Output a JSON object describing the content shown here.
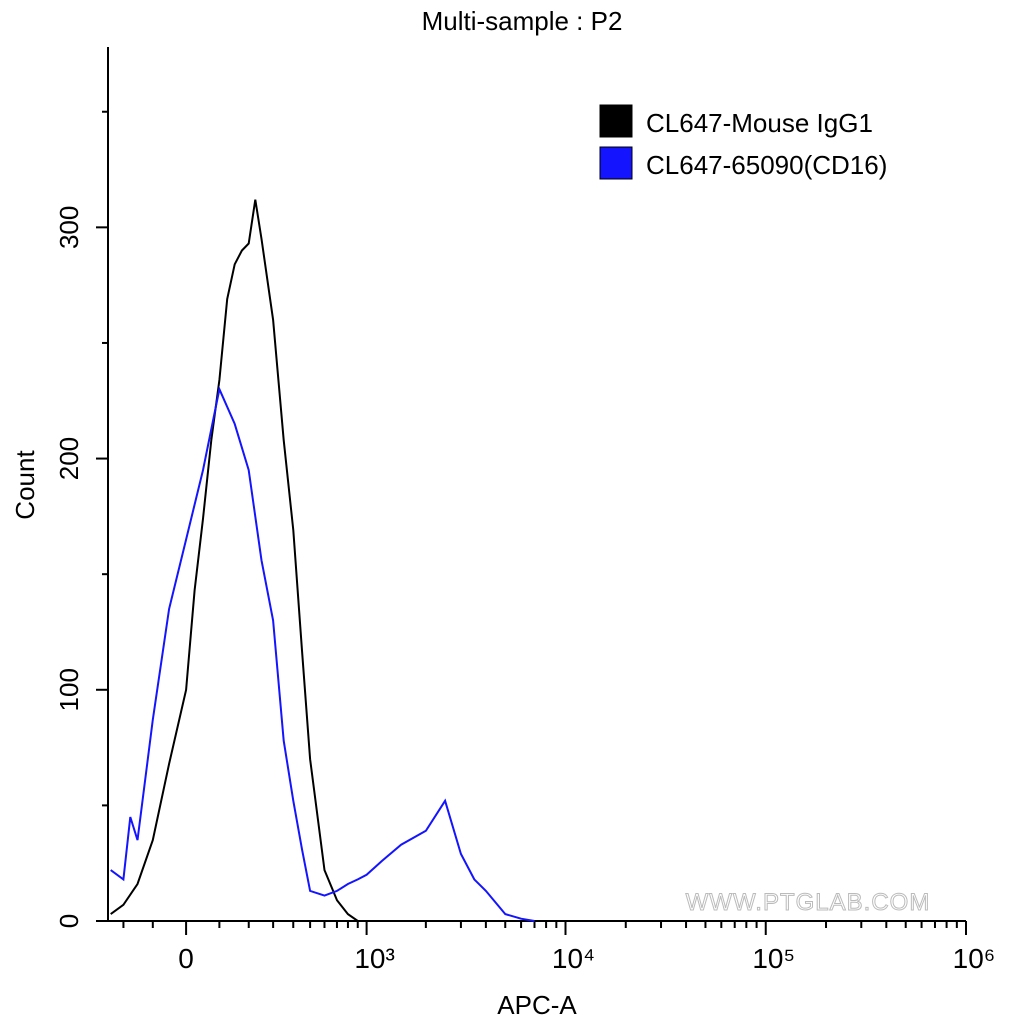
{
  "chart_data": {
    "type": "line",
    "title": "Multi-sample : P2",
    "x_label": "APC-A",
    "y_label": "Count",
    "watermark": "WWW.PTGLAB.COM",
    "xscale": "biexponential",
    "legend": "upper right",
    "xlim": [
      -261,
      1000000
    ],
    "ylim": [
      0,
      378
    ],
    "xticks": [
      0,
      {
        "value": 1000,
        "label": "10³"
      },
      {
        "value": 10000,
        "label": "10⁴"
      },
      {
        "value": 100000,
        "label": "10⁵"
      },
      {
        "value": 1000000,
        "label": "10⁶"
      }
    ],
    "xminorticks": [
      -200,
      -100,
      100,
      200,
      300,
      400,
      500,
      600,
      700,
      800,
      900,
      2000,
      3000,
      4000,
      5000,
      6000,
      7000,
      8000,
      9000,
      20000,
      30000,
      40000,
      50000,
      60000,
      70000,
      80000,
      90000,
      200000,
      300000,
      400000,
      500000,
      600000,
      700000,
      800000,
      900000
    ],
    "yticks": [
      0,
      100,
      200,
      300
    ],
    "yminorticks": [
      50,
      150,
      250,
      350
    ],
    "series": [
      {
        "name": "CL647-Mouse IgG1",
        "color": "#000000",
        "x": [
          -250,
          -200,
          -150,
          -100,
          -50,
          0,
          25,
          50,
          75,
          100,
          125,
          150,
          175,
          200,
          225,
          250,
          300,
          350,
          400,
          450,
          500,
          600,
          700,
          800,
          900,
          1200,
          1500
        ],
        "values": [
          3,
          7,
          16,
          35,
          68,
          100,
          143,
          174,
          208,
          234,
          269,
          284,
          290,
          293,
          312,
          295,
          260,
          208,
          169,
          117,
          70,
          22,
          9,
          3,
          0,
          0,
          0
        ]
      },
      {
        "name": "CL647-65090(CD16)",
        "color": "#1414ff",
        "x": [
          -250,
          -200,
          -175,
          -150,
          -100,
          -50,
          0,
          50,
          100,
          150,
          200,
          250,
          300,
          350,
          400,
          450,
          500,
          600,
          700,
          800,
          900,
          1000,
          1200,
          1500,
          2000,
          2500,
          3000,
          3500,
          4000,
          5000,
          6000,
          7000
        ],
        "values": [
          22,
          18,
          45,
          35,
          87,
          135,
          165,
          195,
          230,
          215,
          195,
          156,
          130,
          78,
          52,
          31,
          13,
          11,
          13,
          16,
          18,
          20,
          26,
          33,
          39,
          52,
          29,
          18,
          13,
          3,
          1,
          0
        ]
      }
    ]
  }
}
